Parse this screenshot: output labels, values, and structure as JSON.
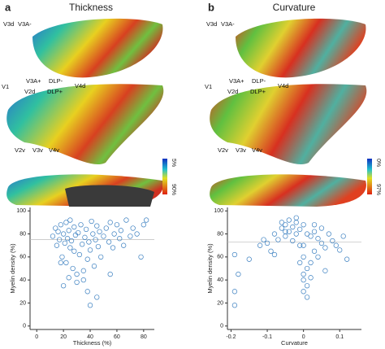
{
  "chart_data": [
    {
      "type": "scatter",
      "panel_label": "a",
      "title": "Thickness",
      "region_labels": [
        "V3d",
        "V3A-",
        "V1",
        "V3A+",
        "V2d",
        "DLP+",
        "DLP-",
        "V4d",
        "V2v",
        "V3v",
        "V4v"
      ],
      "colorbar_labels": [
        "5%",
        "90%"
      ],
      "xlabel": "Thickness (%)",
      "ylabel": "Myelin density (%)",
      "x": [
        12,
        14,
        15,
        16,
        17,
        18,
        19,
        20,
        21,
        22,
        22,
        23,
        24,
        25,
        25,
        26,
        27,
        28,
        28,
        29,
        30,
        31,
        32,
        33,
        34,
        35,
        36,
        37,
        38,
        39,
        40,
        40,
        41,
        42,
        43,
        44,
        45,
        46,
        47,
        48,
        50,
        52,
        54,
        55,
        57,
        58,
        60,
        62,
        63,
        65,
        67,
        70,
        72,
        75,
        78,
        80,
        82,
        20,
        24,
        35,
        38,
        30,
        18,
        45,
        55
      ],
      "y": [
        78,
        85,
        70,
        82,
        75,
        88,
        60,
        80,
        72,
        90,
        55,
        76,
        83,
        68,
        92,
        74,
        50,
        86,
        65,
        79,
        45,
        81,
        62,
        88,
        71,
        40,
        77,
        84,
        58,
        73,
        18,
        66,
        91,
        80,
        52,
        75,
        87,
        69,
        82,
        60,
        78,
        85,
        73,
        90,
        68,
        80,
        88,
        76,
        83,
        70,
        92,
        78,
        85,
        80,
        60,
        88,
        92,
        35,
        42,
        48,
        30,
        38,
        55,
        25,
        45
      ],
      "xlim": [
        -5,
        88
      ],
      "ylim": [
        -3,
        103
      ],
      "xticks": [
        0,
        20,
        40,
        60,
        80
      ],
      "yticks": [
        0,
        20,
        40,
        60,
        80,
        100
      ],
      "hline": 75,
      "color": "#3a7fc0"
    },
    {
      "type": "scatter",
      "panel_label": "b",
      "title": "Curvature",
      "region_labels": [
        "V3d",
        "V3A-",
        "V1",
        "V3A+",
        "V2d",
        "DLP+",
        "DLP-",
        "V4d",
        "V2v",
        "V3v",
        "V4v"
      ],
      "colorbar_labels": [
        "0%",
        "97%"
      ],
      "xlabel": "Curvature",
      "ylabel": "Myelin density (%)",
      "x": [
        -0.19,
        -0.19,
        -0.19,
        -0.18,
        -0.15,
        -0.12,
        -0.1,
        -0.09,
        -0.08,
        -0.07,
        -0.06,
        -0.05,
        -0.05,
        -0.04,
        -0.04,
        -0.03,
        -0.03,
        -0.02,
        -0.02,
        -0.01,
        -0.01,
        0,
        0,
        0,
        0,
        0.01,
        0.01,
        0.01,
        0.02,
        0.02,
        0.03,
        0.03,
        0.04,
        0.04,
        0.05,
        0.05,
        0.06,
        0.07,
        0.08,
        0.09,
        0.1,
        0.11,
        0.12,
        -0.06,
        -0.08,
        -0.11,
        0,
        -0.01,
        0.02,
        0.01,
        0,
        -0.02,
        0.03,
        -0.05,
        0.06
      ],
      "y": [
        18,
        30,
        62,
        45,
        58,
        70,
        72,
        65,
        80,
        75,
        85,
        88,
        78,
        92,
        82,
        86,
        74,
        90,
        80,
        84,
        70,
        88,
        60,
        45,
        30,
        80,
        50,
        35,
        78,
        55,
        82,
        65,
        76,
        60,
        72,
        85,
        68,
        80,
        74,
        70,
        66,
        78,
        58,
        90,
        62,
        75,
        40,
        55,
        42,
        25,
        70,
        94,
        88,
        82,
        48
      ],
      "xlim": [
        -0.21,
        0.16
      ],
      "ylim": [
        -3,
        103
      ],
      "xticks": [
        -0.2,
        -0.1,
        0,
        0.1
      ],
      "yticks": [
        0,
        20,
        40,
        60,
        80,
        100
      ],
      "hline": 73,
      "color": "#3a7fc0"
    }
  ]
}
